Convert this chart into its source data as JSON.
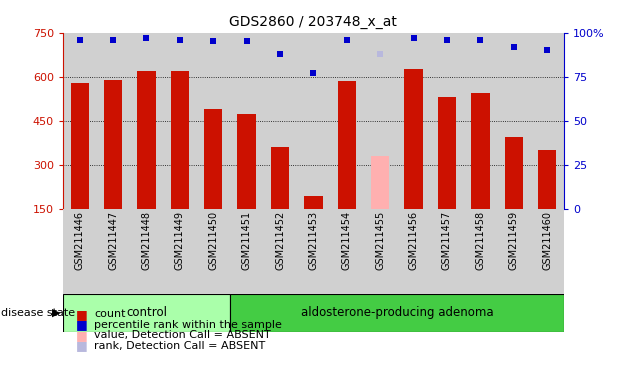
{
  "title": "GDS2860 / 203748_x_at",
  "samples": [
    "GSM211446",
    "GSM211447",
    "GSM211448",
    "GSM211449",
    "GSM211450",
    "GSM211451",
    "GSM211452",
    "GSM211453",
    "GSM211454",
    "GSM211455",
    "GSM211456",
    "GSM211457",
    "GSM211458",
    "GSM211459",
    "GSM211460"
  ],
  "counts": [
    580,
    590,
    620,
    620,
    490,
    475,
    360,
    195,
    585,
    330,
    625,
    530,
    545,
    395,
    350
  ],
  "ranks": [
    96,
    96,
    97,
    96,
    95,
    95,
    88,
    77,
    96,
    88,
    97,
    96,
    96,
    92,
    90
  ],
  "absent_mask": [
    false,
    false,
    false,
    false,
    false,
    false,
    false,
    false,
    false,
    true,
    false,
    false,
    false,
    false,
    false
  ],
  "absent_rank_mask": [
    false,
    false,
    false,
    false,
    false,
    false,
    false,
    false,
    false,
    true,
    false,
    false,
    false,
    false,
    false
  ],
  "ylim_left": [
    150,
    750
  ],
  "ylim_right": [
    0,
    100
  ],
  "yticks_left": [
    150,
    300,
    450,
    600,
    750
  ],
  "yticks_right": [
    0,
    25,
    50,
    75,
    100
  ],
  "bar_color_present": "#cc1100",
  "bar_color_absent": "#ffb0b0",
  "rank_color_present": "#0000cc",
  "rank_color_absent": "#b8b8dd",
  "bg_color": "#d0d0d0",
  "control_bg": "#aaffaa",
  "adenoma_bg": "#44cc44",
  "control_indices": [
    0,
    1,
    2,
    3,
    4
  ],
  "adenoma_indices": [
    5,
    6,
    7,
    8,
    9,
    10,
    11,
    12,
    13,
    14
  ],
  "control_label": "control",
  "adenoma_label": "aldosterone-producing adenoma",
  "disease_state_label": "disease state",
  "grid_lines": [
    300,
    450,
    600
  ],
  "legend_items": [
    {
      "label": "count",
      "color": "#cc1100"
    },
    {
      "label": "percentile rank within the sample",
      "color": "#0000cc"
    },
    {
      "label": "value, Detection Call = ABSENT",
      "color": "#ffb0b0"
    },
    {
      "label": "rank, Detection Call = ABSENT",
      "color": "#b8b8dd"
    }
  ]
}
